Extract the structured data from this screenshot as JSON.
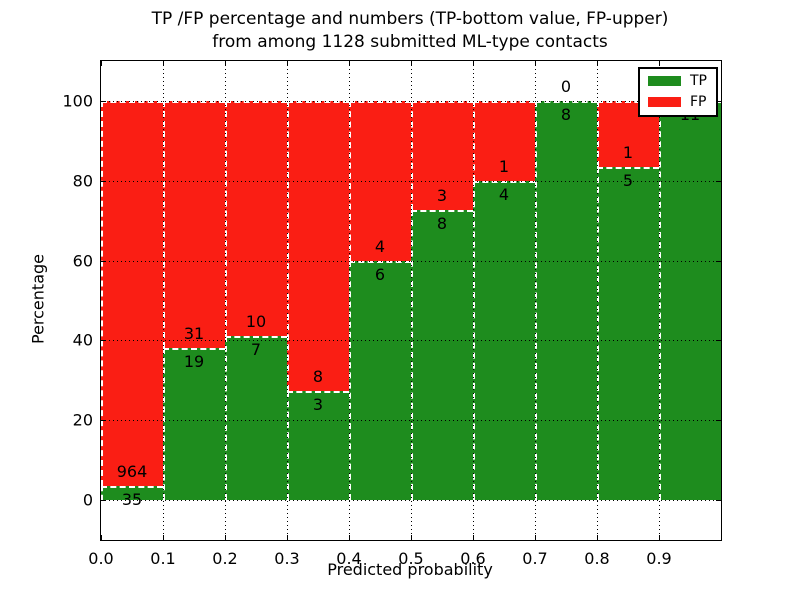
{
  "figure": {
    "title_line1": "TP /FP percentage and numbers (TP-bottom value, FP-upper)",
    "title_line2": "from among 1128 submitted ML-type contacts"
  },
  "axes": {
    "xlabel": "Predicted probability",
    "ylabel": "Percentage",
    "x_tick_labels": [
      "0.0",
      "0.1",
      "0.2",
      "0.3",
      "0.4",
      "0.5",
      "0.6",
      "0.7",
      "0.8",
      "0.9"
    ],
    "y_tick_labels": [
      "0",
      "20",
      "40",
      "60",
      "80",
      "100"
    ],
    "y_tick_values": [
      0,
      20,
      40,
      60,
      80,
      100
    ],
    "xlim": [
      0.0,
      1.0
    ],
    "ylim": [
      -10,
      110
    ],
    "grid_style": "dotted"
  },
  "legend": {
    "position": "upper-right",
    "items": [
      {
        "label": "TP",
        "color": "#1e8c1e"
      },
      {
        "label": "FP",
        "color": "#fa1e14"
      }
    ]
  },
  "colors": {
    "tp_green": "#1e8c1e",
    "fp_red": "#fa1e14",
    "bar_edge": "#ffffff",
    "grid": "#000000",
    "background": "#ffffff"
  },
  "chart_data": {
    "type": "bar",
    "stacked": true,
    "normalized": "each bar scaled to 100%",
    "title": "TP /FP percentage and numbers (TP-bottom value, FP-upper) from among 1128 submitted ML-type contacts",
    "xlabel": "Predicted probability",
    "ylabel": "Percentage",
    "total_contacts": 1128,
    "bins": [
      "0.0-0.1",
      "0.1-0.2",
      "0.2-0.3",
      "0.3-0.4",
      "0.4-0.5",
      "0.5-0.6",
      "0.6-0.7",
      "0.7-0.8",
      "0.8-0.9",
      "0.9-1.0"
    ],
    "bin_left_edges": [
      0.0,
      0.1,
      0.2,
      0.3,
      0.4,
      0.5,
      0.6,
      0.7,
      0.8,
      0.9
    ],
    "series": [
      {
        "name": "TP",
        "color": "#1e8c1e",
        "values": [
          35,
          19,
          7,
          3,
          6,
          8,
          4,
          8,
          5,
          11
        ]
      },
      {
        "name": "FP",
        "color": "#fa1e14",
        "values": [
          964,
          31,
          10,
          8,
          4,
          3,
          1,
          0,
          1,
          0
        ]
      }
    ],
    "tp_percent_of_bar": [
      3.5,
      38.0,
      41.2,
      27.3,
      60.0,
      72.7,
      80.0,
      100.0,
      83.3,
      100.0
    ],
    "ylim": [
      -10,
      110
    ],
    "grid": true,
    "legend_position": "upper-right"
  }
}
